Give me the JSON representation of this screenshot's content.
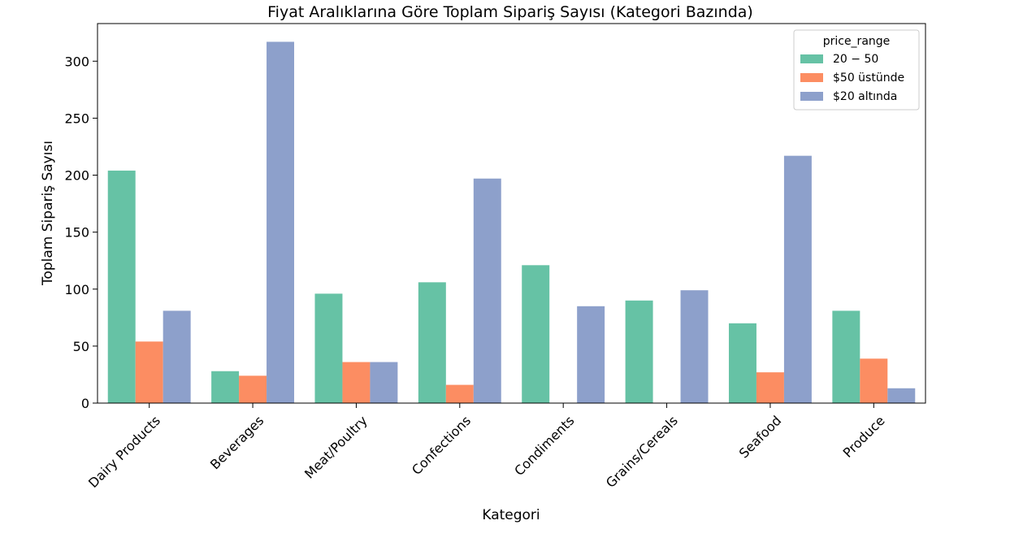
{
  "chart_data": {
    "type": "bar",
    "title": "Fiyat Aralıklarına Göre Toplam Sipariş Sayısı (Kategori Bazında)",
    "xlabel": "Kategori",
    "ylabel": "Toplam Sipariş Sayısı",
    "categories": [
      "Dairy Products",
      "Beverages",
      "Meat/Poultry",
      "Confections",
      "Condiments",
      "Grains/Cereals",
      "Seafood",
      "Produce"
    ],
    "ylim": [
      0,
      333
    ],
    "yticks": [
      0,
      50,
      100,
      150,
      200,
      250,
      300
    ],
    "legend": {
      "title": "price_range",
      "position": "top-right"
    },
    "grid": false,
    "series": [
      {
        "name": "20 − 50",
        "color": "#66c2a5",
        "values": [
          204,
          28,
          96,
          106,
          121,
          90,
          70,
          81
        ]
      },
      {
        "name": "$50 üstünde",
        "color": "#fc8d62",
        "values": [
          54,
          24,
          36,
          16,
          0,
          0,
          27,
          39
        ]
      },
      {
        "name": "$20 altında",
        "color": "#8da0cb",
        "values": [
          81,
          317,
          36,
          197,
          85,
          99,
          217,
          13
        ]
      }
    ]
  }
}
